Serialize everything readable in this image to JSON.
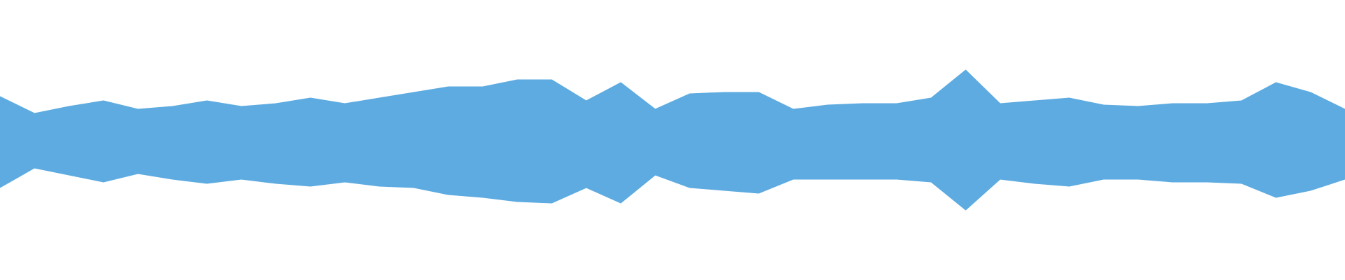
{
  "chart_data": {
    "type": "waveform",
    "color": "#5dabe0",
    "ylim": [
      -1,
      1
    ],
    "series": [
      {
        "color": "#5dabe0",
        "values": [
          0.31,
          0.19,
          0.24,
          0.28,
          0.22,
          0.24,
          0.28,
          0.24,
          0.26,
          0.3,
          0.26,
          0.3,
          0.34,
          0.38,
          0.38,
          0.43,
          0.43,
          0.28,
          0.41,
          0.22,
          0.33,
          0.34,
          0.34,
          0.22,
          0.25,
          0.26,
          0.26,
          0.3,
          0.5,
          0.26,
          0.28,
          0.3,
          0.25,
          0.24,
          0.26,
          0.26,
          0.28,
          0.41,
          0.34,
          0.22
        ]
      },
      {
        "color": "#5dabe0",
        "values": [
          -0.34,
          -0.2,
          -0.25,
          -0.3,
          -0.24,
          -0.28,
          -0.31,
          -0.28,
          -0.31,
          -0.33,
          -0.3,
          -0.33,
          -0.34,
          -0.39,
          -0.41,
          -0.44,
          -0.45,
          -0.34,
          -0.45,
          -0.25,
          -0.34,
          -0.36,
          -0.38,
          -0.28,
          -0.28,
          -0.28,
          -0.28,
          -0.3,
          -0.5,
          -0.28,
          -0.31,
          -0.33,
          -0.28,
          -0.28,
          -0.3,
          -0.3,
          -0.31,
          -0.41,
          -0.36,
          -0.28
        ]
      }
    ]
  }
}
